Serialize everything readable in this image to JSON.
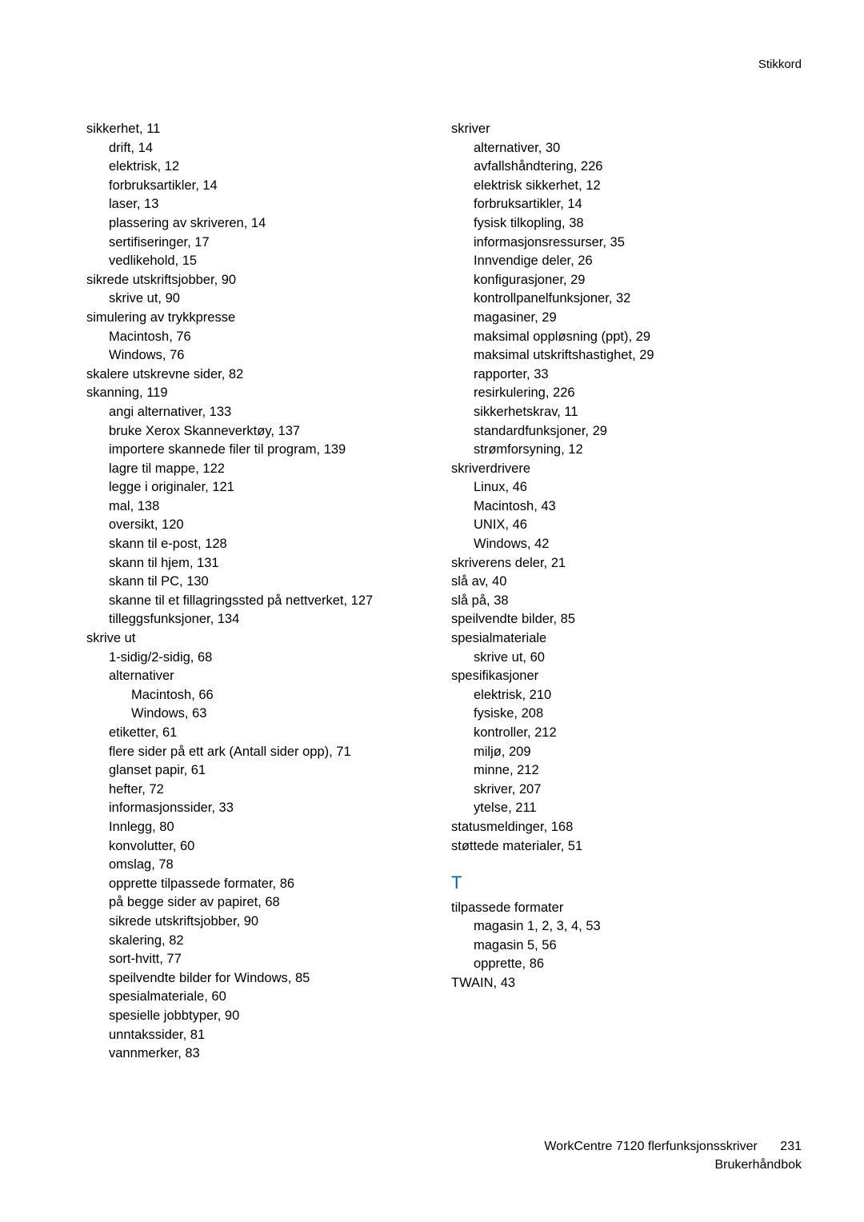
{
  "header": {
    "title": "Stikkord"
  },
  "footer": {
    "line1": "WorkCentre 7120 flerfunksjonsskriver",
    "line2": "Brukerhåndbok",
    "page": "231"
  },
  "col1": [
    {
      "lvl": 0,
      "t": "sikkerhet, 11"
    },
    {
      "lvl": 1,
      "t": "drift, 14"
    },
    {
      "lvl": 1,
      "t": "elektrisk, 12"
    },
    {
      "lvl": 1,
      "t": "forbruksartikler, 14"
    },
    {
      "lvl": 1,
      "t": "laser, 13"
    },
    {
      "lvl": 1,
      "t": "plassering av skriveren, 14"
    },
    {
      "lvl": 1,
      "t": "sertifiseringer, 17"
    },
    {
      "lvl": 1,
      "t": "vedlikehold, 15"
    },
    {
      "lvl": 0,
      "t": "sikrede utskriftsjobber, 90"
    },
    {
      "lvl": 1,
      "t": "skrive ut, 90"
    },
    {
      "lvl": 0,
      "t": "simulering av trykkpresse"
    },
    {
      "lvl": 1,
      "t": "Macintosh, 76"
    },
    {
      "lvl": 1,
      "t": "Windows, 76"
    },
    {
      "lvl": 0,
      "t": "skalere utskrevne sider, 82"
    },
    {
      "lvl": 0,
      "t": "skanning, 119"
    },
    {
      "lvl": 1,
      "t": "angi alternativer, 133"
    },
    {
      "lvl": 1,
      "t": "bruke Xerox Skanneverktøy, 137"
    },
    {
      "lvl": 1,
      "t": "importere skannede filer til program, 139"
    },
    {
      "lvl": 1,
      "t": "lagre til mappe, 122"
    },
    {
      "lvl": 1,
      "t": "legge i originaler, 121"
    },
    {
      "lvl": 1,
      "t": "mal, 138"
    },
    {
      "lvl": 1,
      "t": "oversikt, 120"
    },
    {
      "lvl": 1,
      "t": "skann til e-post, 128"
    },
    {
      "lvl": 1,
      "t": "skann til hjem, 131"
    },
    {
      "lvl": 1,
      "t": "skann til PC, 130"
    },
    {
      "lvl": 1,
      "t": "skanne til et fillagringssted på nettverket, 127"
    },
    {
      "lvl": 1,
      "t": "tilleggsfunksjoner, 134"
    },
    {
      "lvl": 0,
      "t": "skrive ut"
    },
    {
      "lvl": 1,
      "t": "1-sidig/2-sidig, 68"
    },
    {
      "lvl": 1,
      "t": "alternativer"
    },
    {
      "lvl": 2,
      "t": "Macintosh, 66"
    },
    {
      "lvl": 2,
      "t": "Windows, 63"
    },
    {
      "lvl": 1,
      "t": "etiketter, 61"
    },
    {
      "lvl": 1,
      "t": "flere sider på ett ark (Antall sider opp), 71"
    },
    {
      "lvl": 1,
      "t": "glanset papir, 61"
    },
    {
      "lvl": 1,
      "t": "hefter, 72"
    },
    {
      "lvl": 1,
      "t": "informasjonssider, 33"
    },
    {
      "lvl": 1,
      "t": "Innlegg, 80"
    },
    {
      "lvl": 1,
      "t": "konvolutter, 60"
    },
    {
      "lvl": 1,
      "t": "omslag, 78"
    },
    {
      "lvl": 1,
      "t": "opprette tilpassede formater, 86"
    },
    {
      "lvl": 1,
      "t": "på begge sider av papiret, 68"
    },
    {
      "lvl": 1,
      "t": "sikrede utskriftsjobber, 90"
    },
    {
      "lvl": 1,
      "t": "skalering, 82"
    },
    {
      "lvl": 1,
      "t": "sort-hvitt, 77"
    },
    {
      "lvl": 1,
      "t": "speilvendte bilder for Windows, 85"
    },
    {
      "lvl": 1,
      "t": "spesialmateriale, 60"
    },
    {
      "lvl": 1,
      "t": "spesielle jobbtyper, 90"
    },
    {
      "lvl": 1,
      "t": "unntakssider, 81"
    },
    {
      "lvl": 1,
      "t": "vannmerker, 83"
    }
  ],
  "col2": [
    {
      "lvl": 0,
      "t": "skriver"
    },
    {
      "lvl": 1,
      "t": "alternativer, 30"
    },
    {
      "lvl": 1,
      "t": "avfallshåndtering, 226"
    },
    {
      "lvl": 1,
      "t": "elektrisk sikkerhet, 12"
    },
    {
      "lvl": 1,
      "t": "forbruksartikler, 14"
    },
    {
      "lvl": 1,
      "t": "fysisk tilkopling, 38"
    },
    {
      "lvl": 1,
      "t": "informasjonsressurser, 35"
    },
    {
      "lvl": 1,
      "t": "Innvendige deler, 26"
    },
    {
      "lvl": 1,
      "t": "konfigurasjoner, 29"
    },
    {
      "lvl": 1,
      "t": "kontrollpanelfunksjoner, 32"
    },
    {
      "lvl": 1,
      "t": "magasiner, 29"
    },
    {
      "lvl": 1,
      "t": "maksimal oppløsning (ppt), 29"
    },
    {
      "lvl": 1,
      "t": "maksimal utskriftshastighet, 29"
    },
    {
      "lvl": 1,
      "t": "rapporter, 33"
    },
    {
      "lvl": 1,
      "t": "resirkulering, 226"
    },
    {
      "lvl": 1,
      "t": "sikkerhetskrav, 11"
    },
    {
      "lvl": 1,
      "t": "standardfunksjoner, 29"
    },
    {
      "lvl": 1,
      "t": "strømforsyning, 12"
    },
    {
      "lvl": 0,
      "t": "skriverdrivere"
    },
    {
      "lvl": 1,
      "t": "Linux, 46"
    },
    {
      "lvl": 1,
      "t": "Macintosh, 43"
    },
    {
      "lvl": 1,
      "t": "UNIX, 46"
    },
    {
      "lvl": 1,
      "t": "Windows, 42"
    },
    {
      "lvl": 0,
      "t": "skriverens deler, 21"
    },
    {
      "lvl": 0,
      "t": "slå av, 40"
    },
    {
      "lvl": 0,
      "t": "slå på, 38"
    },
    {
      "lvl": 0,
      "t": "speilvendte bilder, 85"
    },
    {
      "lvl": 0,
      "t": "spesialmateriale"
    },
    {
      "lvl": 1,
      "t": "skrive ut, 60"
    },
    {
      "lvl": 0,
      "t": "spesifikasjoner"
    },
    {
      "lvl": 1,
      "t": "elektrisk, 210"
    },
    {
      "lvl": 1,
      "t": "fysiske, 208"
    },
    {
      "lvl": 1,
      "t": "kontroller, 212"
    },
    {
      "lvl": 1,
      "t": "miljø, 209"
    },
    {
      "lvl": 1,
      "t": "minne, 212"
    },
    {
      "lvl": 1,
      "t": "skriver, 207"
    },
    {
      "lvl": 1,
      "t": "ytelse, 211"
    },
    {
      "lvl": 0,
      "t": "statusmeldinger, 168"
    },
    {
      "lvl": 0,
      "t": "støttede materialer, 51"
    }
  ],
  "sectionT": {
    "letter": "T",
    "items": [
      {
        "lvl": 0,
        "t": "tilpassede formater"
      },
      {
        "lvl": 1,
        "t": "magasin 1, 2, 3, 4, 53"
      },
      {
        "lvl": 1,
        "t": "magasin 5, 56"
      },
      {
        "lvl": 1,
        "t": "opprette, 86"
      },
      {
        "lvl": 0,
        "t": "TWAIN, 43"
      }
    ]
  }
}
